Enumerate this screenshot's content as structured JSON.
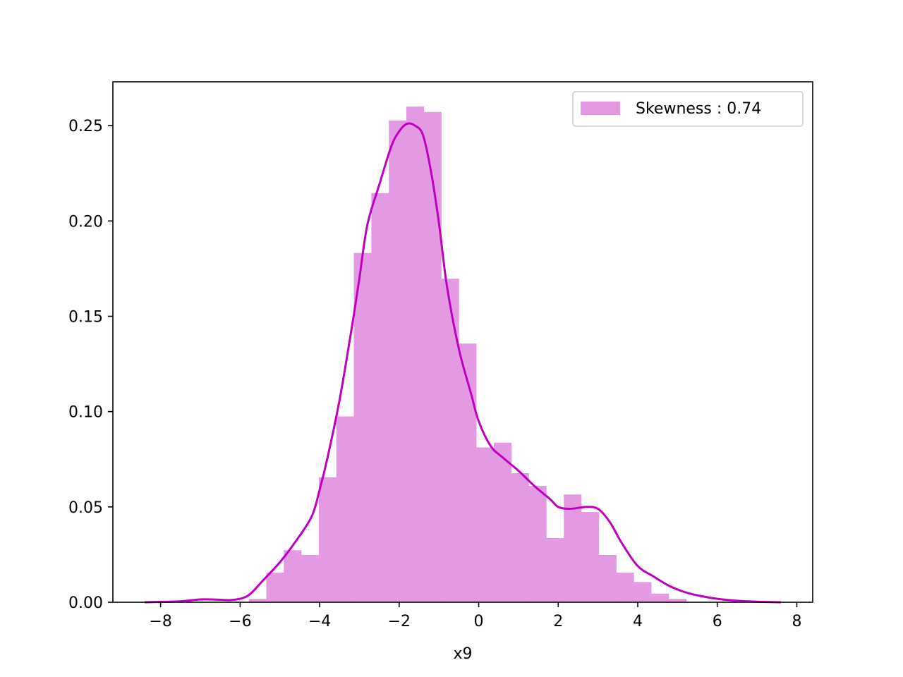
{
  "chart_data": {
    "type": "bar",
    "xlabel": "x9",
    "ylabel": "",
    "xlim": [
      -9.2,
      8.4
    ],
    "ylim": [
      0,
      0.273
    ],
    "xticks": [
      -8,
      -6,
      -4,
      -2,
      0,
      2,
      4,
      6,
      8
    ],
    "xtick_labels": [
      "−8",
      "−6",
      "−4",
      "−2",
      "0",
      "2",
      "4",
      "6",
      "8"
    ],
    "yticks": [
      0.0,
      0.05,
      0.1,
      0.15,
      0.2,
      0.25
    ],
    "ytick_labels": [
      "0.00",
      "0.05",
      "0.10",
      "0.15",
      "0.20",
      "0.25"
    ],
    "grid": false,
    "legend_position": "top-right",
    "colors": {
      "bar": "#e39ae3",
      "line": "#bf00bf"
    },
    "series": [
      {
        "name": "Skewness : 0.74",
        "kind": "histogram",
        "bin_start": -5.78,
        "bin_width": 0.44,
        "values": [
          0.0018,
          0.0155,
          0.0273,
          0.0248,
          0.0656,
          0.0975,
          0.1832,
          0.2146,
          0.2527,
          0.26,
          0.2572,
          0.1697,
          0.1357,
          0.0812,
          0.0837,
          0.0677,
          0.061,
          0.0337,
          0.0565,
          0.0473,
          0.0248,
          0.0155,
          0.0106,
          0.0045,
          0.0018
        ]
      },
      {
        "name": "",
        "kind": "kde",
        "x": [
          -8.4,
          -7.5,
          -7.0,
          -6.6,
          -6.2,
          -5.8,
          -5.4,
          -5.0,
          -4.6,
          -4.2,
          -4.0,
          -3.8,
          -3.5,
          -3.2,
          -3.0,
          -2.8,
          -2.5,
          -2.2,
          -2.0,
          -1.8,
          -1.6,
          -1.4,
          -1.2,
          -1.0,
          -0.8,
          -0.5,
          -0.2,
          0.0,
          0.3,
          0.6,
          1.0,
          1.4,
          1.8,
          2.0,
          2.3,
          2.7,
          3.0,
          3.3,
          3.6,
          4.0,
          4.4,
          4.8,
          5.2,
          5.6,
          6.0,
          6.5,
          7.0,
          7.6
        ],
        "y": [
          0.0,
          0.0005,
          0.0015,
          0.0014,
          0.0012,
          0.0035,
          0.012,
          0.021,
          0.032,
          0.045,
          0.059,
          0.076,
          0.106,
          0.143,
          0.17,
          0.198,
          0.219,
          0.239,
          0.247,
          0.251,
          0.25,
          0.245,
          0.226,
          0.199,
          0.166,
          0.133,
          0.11,
          0.095,
          0.082,
          0.076,
          0.069,
          0.061,
          0.054,
          0.05,
          0.049,
          0.05,
          0.049,
          0.042,
          0.031,
          0.019,
          0.0135,
          0.0085,
          0.0052,
          0.0032,
          0.0018,
          0.0008,
          0.0003,
          0.0
        ]
      }
    ]
  }
}
